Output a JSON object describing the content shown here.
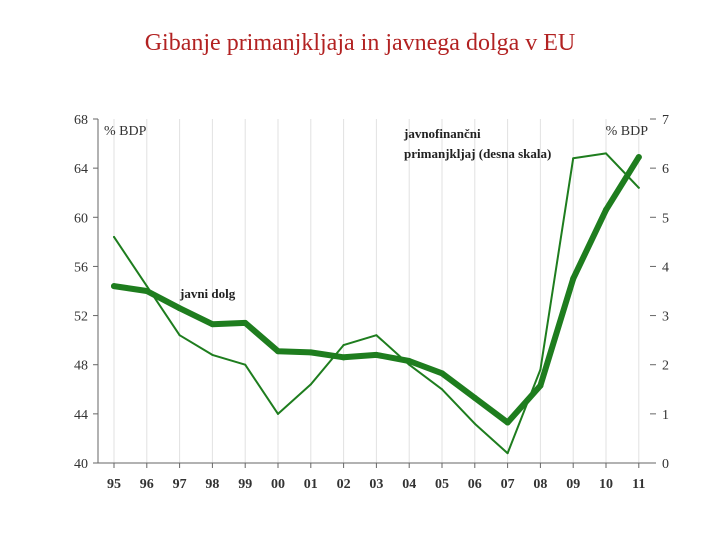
{
  "title": "Gibanje primanjkljaja in javnega dolga v EU",
  "chart_data": {
    "type": "line",
    "title": "Gibanje primanjkljaja in javnega dolga v EU",
    "categories": [
      "95",
      "96",
      "97",
      "98",
      "99",
      "00",
      "01",
      "02",
      "03",
      "04",
      "05",
      "06",
      "07",
      "08",
      "09",
      "10",
      "11"
    ],
    "left_axis": {
      "label": "% BDP",
      "ylim": [
        40,
        68
      ],
      "ticks": [
        "40",
        "44",
        "48",
        "52",
        "56",
        "60",
        "64",
        "68"
      ]
    },
    "right_axis": {
      "label": "% BDP",
      "ylim": [
        0,
        7
      ],
      "ticks": [
        "0",
        "1",
        "2",
        "3",
        "4",
        "5",
        "6",
        "7"
      ]
    },
    "series": [
      {
        "name": "javni dolg",
        "axis": "left",
        "color": "#1e7d1e",
        "values": [
          54.4,
          54.0,
          52.6,
          51.3,
          51.4,
          49.1,
          49.0,
          48.6,
          48.8,
          48.3,
          47.3,
          45.3,
          43.3,
          46.3,
          55.0,
          60.6,
          64.9
        ]
      },
      {
        "name": "javnofinančni primanjkljaj (desna skala)",
        "axis": "right",
        "color": "#1e7d1e",
        "values": [
          4.6,
          3.6,
          2.6,
          2.2,
          2.0,
          1.0,
          1.6,
          2.4,
          2.6,
          2.0,
          1.5,
          0.8,
          0.2,
          1.9,
          6.2,
          6.3,
          5.6
        ]
      }
    ],
    "annotations": {
      "debt_label": "javni dolg",
      "deficit_label_line1": "javnofinančni",
      "deficit_label_line2": "primanjkljaj (desna skala)"
    }
  }
}
